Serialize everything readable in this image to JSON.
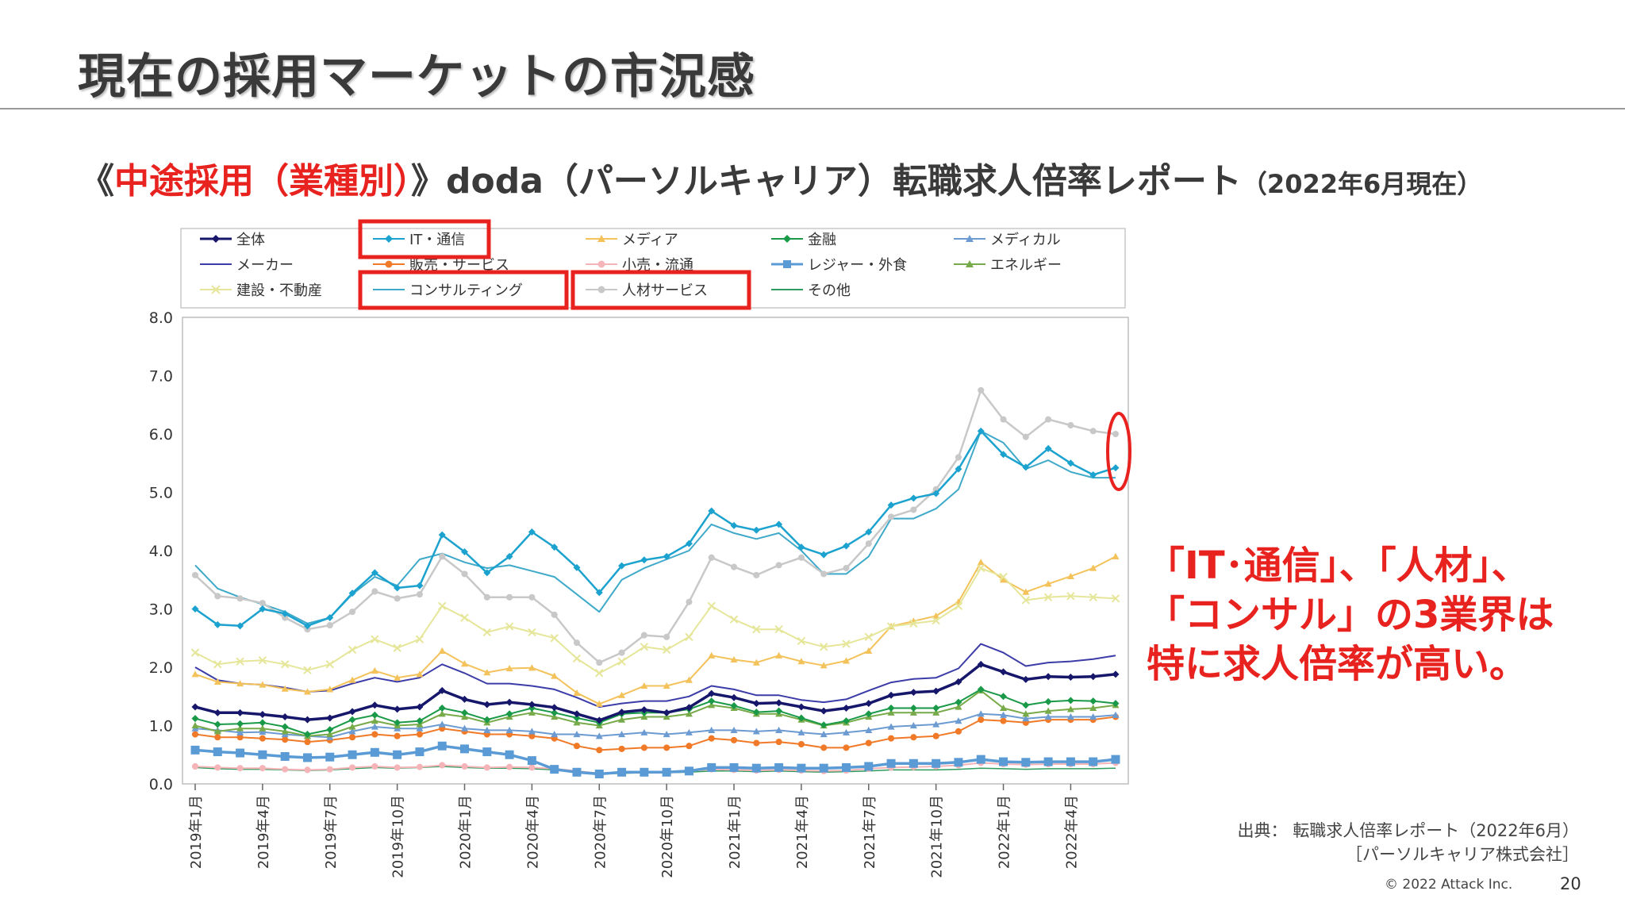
{
  "slide": {
    "title": "現在の採用マーケットの市況感",
    "subtitle_open": "《",
    "subtitle_red": "中途採用（業種別）",
    "subtitle_rest": "》doda（パーソルキャリア）転職求人倍率レポート",
    "subtitle_date": "（2022年6月現在）"
  },
  "callout": {
    "line1": "「IT･通信」、「人材」、",
    "line2": "「コンサル」の3業界は",
    "line3": "特に求人倍率が高い。"
  },
  "source": {
    "line1": "出典： 転職求人倍率レポート（2022年6月）",
    "line2": "［パーソルキャリア株式会社］"
  },
  "footer": {
    "copyright": "© 2022 Attack Inc.",
    "page": "20"
  },
  "colors": {
    "highlight": "#e8231f"
  },
  "chart_data": {
    "type": "line",
    "ylim": [
      0,
      8
    ],
    "yticks": [
      0,
      1,
      2,
      3,
      4,
      5,
      6,
      7,
      8
    ],
    "ytick_labels": [
      "0.0",
      "1.0",
      "2.0",
      "3.0",
      "4.0",
      "5.0",
      "6.0",
      "7.0",
      "8.0"
    ],
    "x_count": 42,
    "xticks": [
      {
        "index": 0,
        "label": "2019年1月"
      },
      {
        "index": 3,
        "label": "2019年4月"
      },
      {
        "index": 6,
        "label": "2019年7月"
      },
      {
        "index": 9,
        "label": "2019年10月"
      },
      {
        "index": 12,
        "label": "2020年1月"
      },
      {
        "index": 15,
        "label": "2020年4月"
      },
      {
        "index": 18,
        "label": "2020年7月"
      },
      {
        "index": 21,
        "label": "2020年10月"
      },
      {
        "index": 24,
        "label": "2021年1月"
      },
      {
        "index": 27,
        "label": "2021年4月"
      },
      {
        "index": 30,
        "label": "2021年7月"
      },
      {
        "index": 33,
        "label": "2021年10月"
      },
      {
        "index": 36,
        "label": "2022年1月"
      },
      {
        "index": 39,
        "label": "2022年4月"
      }
    ],
    "grid": false,
    "legend": "top",
    "highlighted_legend": [
      "IT・通信",
      "コンサルティング",
      "人材サービス"
    ],
    "series": [
      {
        "name": "全体",
        "color": "#16166b",
        "marker": "diamond",
        "width": 3.5,
        "values": [
          1.32,
          1.22,
          1.22,
          1.19,
          1.15,
          1.1,
          1.13,
          1.24,
          1.35,
          1.28,
          1.32,
          1.6,
          1.45,
          1.36,
          1.4,
          1.36,
          1.31,
          1.2,
          1.09,
          1.23,
          1.27,
          1.22,
          1.31,
          1.55,
          1.48,
          1.38,
          1.39,
          1.32,
          1.25,
          1.3,
          1.38,
          1.52,
          1.57,
          1.59,
          1.75,
          2.05,
          1.92,
          1.79,
          1.84,
          1.83,
          1.84,
          1.88
        ]
      },
      {
        "name": "IT・通信",
        "color": "#1ca2cf",
        "marker": "diamond",
        "width": 2.5,
        "values": [
          3.0,
          2.73,
          2.71,
          3.0,
          2.92,
          2.71,
          2.85,
          3.27,
          3.62,
          3.36,
          3.4,
          4.27,
          3.98,
          3.62,
          3.9,
          4.32,
          4.06,
          3.71,
          3.28,
          3.74,
          3.84,
          3.9,
          4.12,
          4.68,
          4.43,
          4.35,
          4.45,
          4.06,
          3.93,
          4.08,
          4.32,
          4.78,
          4.9,
          4.98,
          5.4,
          6.05,
          5.65,
          5.43,
          5.75,
          5.5,
          5.3,
          5.42
        ]
      },
      {
        "name": "メディア",
        "color": "#f3c25a",
        "marker": "triangle",
        "width": 2,
        "values": [
          1.88,
          1.75,
          1.72,
          1.7,
          1.63,
          1.58,
          1.62,
          1.78,
          1.94,
          1.82,
          1.88,
          2.28,
          2.06,
          1.91,
          1.98,
          1.99,
          1.85,
          1.56,
          1.37,
          1.52,
          1.68,
          1.68,
          1.78,
          2.2,
          2.13,
          2.08,
          2.2,
          2.1,
          2.03,
          2.11,
          2.28,
          2.7,
          2.79,
          2.88,
          3.12,
          3.8,
          3.5,
          3.29,
          3.43,
          3.56,
          3.7,
          3.9
        ]
      },
      {
        "name": "金融",
        "color": "#1a9a48",
        "marker": "diamond",
        "width": 2,
        "values": [
          1.12,
          1.02,
          1.03,
          1.05,
          0.98,
          0.85,
          0.93,
          1.1,
          1.18,
          1.05,
          1.08,
          1.3,
          1.22,
          1.1,
          1.2,
          1.3,
          1.22,
          1.13,
          1.05,
          1.2,
          1.22,
          1.22,
          1.28,
          1.42,
          1.34,
          1.23,
          1.25,
          1.13,
          1.01,
          1.08,
          1.2,
          1.3,
          1.3,
          1.3,
          1.4,
          1.62,
          1.5,
          1.35,
          1.41,
          1.43,
          1.42,
          1.38
        ]
      },
      {
        "name": "メディカル",
        "color": "#6c9bd2",
        "marker": "triangle",
        "width": 2,
        "values": [
          0.95,
          0.92,
          0.88,
          0.89,
          0.85,
          0.82,
          0.8,
          0.9,
          0.98,
          0.95,
          0.95,
          1.02,
          0.95,
          0.92,
          0.92,
          0.9,
          0.85,
          0.85,
          0.82,
          0.85,
          0.88,
          0.85,
          0.88,
          0.92,
          0.92,
          0.9,
          0.92,
          0.88,
          0.85,
          0.88,
          0.92,
          0.98,
          1.0,
          1.02,
          1.08,
          1.2,
          1.18,
          1.12,
          1.15,
          1.15,
          1.15,
          1.18
        ]
      },
      {
        "name": "メーカー",
        "color": "#3c3ca8",
        "marker": "none",
        "width": 2,
        "values": [
          2.0,
          1.78,
          1.72,
          1.7,
          1.65,
          1.58,
          1.6,
          1.72,
          1.82,
          1.75,
          1.82,
          2.05,
          1.9,
          1.72,
          1.72,
          1.68,
          1.62,
          1.48,
          1.32,
          1.38,
          1.42,
          1.42,
          1.5,
          1.68,
          1.62,
          1.52,
          1.52,
          1.44,
          1.4,
          1.45,
          1.6,
          1.74,
          1.8,
          1.82,
          1.98,
          2.4,
          2.25,
          2.02,
          2.08,
          2.1,
          2.14,
          2.2
        ]
      },
      {
        "name": "販売・サービス",
        "color": "#f07a28",
        "marker": "circle",
        "width": 2,
        "values": [
          0.85,
          0.8,
          0.8,
          0.78,
          0.76,
          0.72,
          0.75,
          0.8,
          0.85,
          0.82,
          0.85,
          0.95,
          0.9,
          0.85,
          0.85,
          0.82,
          0.78,
          0.65,
          0.58,
          0.6,
          0.62,
          0.62,
          0.65,
          0.78,
          0.75,
          0.7,
          0.72,
          0.68,
          0.62,
          0.62,
          0.7,
          0.78,
          0.8,
          0.82,
          0.9,
          1.1,
          1.08,
          1.05,
          1.1,
          1.1,
          1.1,
          1.15
        ]
      },
      {
        "name": "小売・流通",
        "color": "#f5b4b8",
        "marker": "circle",
        "width": 2,
        "values": [
          0.3,
          0.28,
          0.27,
          0.27,
          0.25,
          0.24,
          0.25,
          0.28,
          0.3,
          0.28,
          0.29,
          0.32,
          0.3,
          0.28,
          0.29,
          0.28,
          0.26,
          0.22,
          0.18,
          0.2,
          0.21,
          0.21,
          0.22,
          0.25,
          0.24,
          0.23,
          0.24,
          0.23,
          0.22,
          0.23,
          0.26,
          0.28,
          0.29,
          0.3,
          0.32,
          0.36,
          0.34,
          0.33,
          0.34,
          0.34,
          0.34,
          0.36
        ]
      },
      {
        "name": "レジャー・外食",
        "color": "#5b9bd5",
        "marker": "square",
        "width": 3.5,
        "values": [
          0.58,
          0.55,
          0.53,
          0.5,
          0.47,
          0.45,
          0.46,
          0.5,
          0.54,
          0.5,
          0.55,
          0.65,
          0.6,
          0.55,
          0.5,
          0.4,
          0.25,
          0.2,
          0.17,
          0.2,
          0.2,
          0.2,
          0.22,
          0.28,
          0.28,
          0.27,
          0.28,
          0.27,
          0.27,
          0.28,
          0.3,
          0.35,
          0.35,
          0.35,
          0.37,
          0.42,
          0.38,
          0.37,
          0.38,
          0.38,
          0.38,
          0.42
        ]
      },
      {
        "name": "エネルギー",
        "color": "#77aa48",
        "marker": "triangle",
        "width": 2,
        "values": [
          1.0,
          0.9,
          0.95,
          0.95,
          0.9,
          0.82,
          0.85,
          0.98,
          1.08,
          1.0,
          1.02,
          1.2,
          1.15,
          1.05,
          1.15,
          1.22,
          1.15,
          1.05,
          1.0,
          1.1,
          1.15,
          1.15,
          1.2,
          1.35,
          1.3,
          1.2,
          1.2,
          1.1,
          1.0,
          1.05,
          1.15,
          1.22,
          1.22,
          1.22,
          1.32,
          1.6,
          1.3,
          1.2,
          1.25,
          1.28,
          1.3,
          1.35
        ]
      },
      {
        "name": "建設・不動産",
        "color": "#e6e69a",
        "marker": "x",
        "width": 2,
        "values": [
          2.25,
          2.05,
          2.1,
          2.12,
          2.05,
          1.95,
          2.05,
          2.3,
          2.48,
          2.33,
          2.48,
          3.05,
          2.85,
          2.6,
          2.7,
          2.6,
          2.5,
          2.15,
          1.9,
          2.1,
          2.35,
          2.3,
          2.52,
          3.05,
          2.82,
          2.65,
          2.65,
          2.45,
          2.35,
          2.4,
          2.52,
          2.7,
          2.75,
          2.8,
          3.05,
          3.7,
          3.55,
          3.15,
          3.2,
          3.22,
          3.2,
          3.18
        ]
      },
      {
        "name": "コンサルティング",
        "color": "#3fa9c9",
        "marker": "none",
        "width": 2,
        "values": [
          3.75,
          3.35,
          3.2,
          3.08,
          2.95,
          2.75,
          2.85,
          3.25,
          3.55,
          3.4,
          3.85,
          3.95,
          3.8,
          3.7,
          3.75,
          3.65,
          3.55,
          3.25,
          2.95,
          3.5,
          3.7,
          3.85,
          4.0,
          4.45,
          4.3,
          4.2,
          4.3,
          4.0,
          3.6,
          3.6,
          3.9,
          4.55,
          4.55,
          4.72,
          5.05,
          6.05,
          5.85,
          5.4,
          5.55,
          5.35,
          5.25,
          5.25
        ]
      },
      {
        "name": "人材サービス",
        "color": "#c8c8c8",
        "marker": "circle",
        "width": 2.5,
        "values": [
          3.58,
          3.22,
          3.18,
          3.1,
          2.85,
          2.65,
          2.72,
          2.95,
          3.3,
          3.18,
          3.25,
          3.9,
          3.6,
          3.2,
          3.2,
          3.2,
          2.9,
          2.42,
          2.08,
          2.25,
          2.55,
          2.52,
          3.12,
          3.88,
          3.72,
          3.58,
          3.75,
          3.88,
          3.6,
          3.7,
          4.12,
          4.58,
          4.7,
          5.05,
          5.6,
          6.75,
          6.25,
          5.95,
          6.25,
          6.15,
          6.05,
          6.0
        ]
      },
      {
        "name": "その他",
        "color": "#2e9c5e",
        "marker": "none",
        "width": 1.5,
        "values": [
          0.28,
          0.26,
          0.25,
          0.25,
          0.24,
          0.23,
          0.24,
          0.26,
          0.28,
          0.27,
          0.28,
          0.3,
          0.28,
          0.27,
          0.27,
          0.26,
          0.24,
          0.2,
          0.17,
          0.18,
          0.19,
          0.19,
          0.2,
          0.22,
          0.22,
          0.21,
          0.22,
          0.21,
          0.2,
          0.21,
          0.22,
          0.24,
          0.24,
          0.24,
          0.25,
          0.27,
          0.26,
          0.25,
          0.26,
          0.26,
          0.26,
          0.27
        ]
      }
    ]
  }
}
